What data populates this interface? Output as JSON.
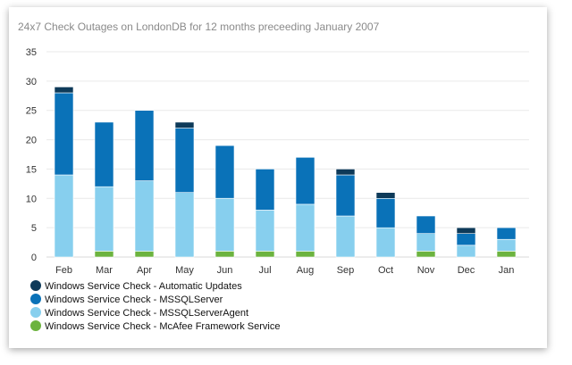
{
  "chart_data": {
    "type": "bar",
    "stacked": true,
    "title": "24x7 Check Outages on LondonDB for 12 months preceeding January 2007",
    "xlabel": "",
    "ylabel": "",
    "ylim": [
      0,
      35
    ],
    "yticks": [
      0,
      5,
      10,
      15,
      20,
      25,
      30,
      35
    ],
    "grid": true,
    "legend_position": "bottom-left",
    "categories": [
      "Feb",
      "Mar",
      "Apr",
      "May",
      "Jun",
      "Jul",
      "Aug",
      "Sep",
      "Oct",
      "Nov",
      "Dec",
      "Jan"
    ],
    "series": [
      {
        "name": "Windows Service Check - McAfee Framework Service",
        "color": "#6cb33f",
        "values": [
          0,
          1,
          1,
          0,
          1,
          1,
          1,
          0,
          0,
          1,
          0,
          1
        ]
      },
      {
        "name": "Windows Service Check - MSSQLServerAgent",
        "color": "#87cfee",
        "values": [
          14,
          11,
          12,
          11,
          9,
          7,
          8,
          7,
          5,
          3,
          2,
          2
        ]
      },
      {
        "name": "Windows Service Check - MSSQLServer",
        "color": "#0a72b8",
        "values": [
          14,
          11,
          12,
          11,
          9,
          7,
          8,
          7,
          5,
          3,
          2,
          2
        ]
      },
      {
        "name": "Windows Service Check - Automatic Updates",
        "color": "#0e3a59",
        "values": [
          1,
          0,
          0,
          1,
          0,
          0,
          0,
          1,
          1,
          0,
          1,
          0
        ]
      }
    ],
    "legend_order": [
      3,
      2,
      1,
      0
    ]
  }
}
